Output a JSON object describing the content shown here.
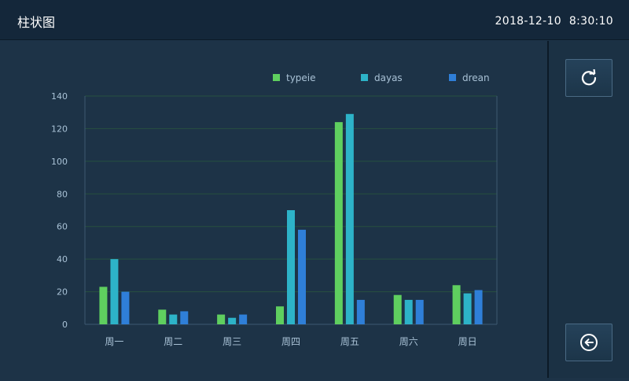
{
  "header": {
    "title": "柱状图",
    "date": "2018-12-10",
    "time": "8:30:10"
  },
  "buttons": {
    "refresh_icon": "refresh-icon",
    "back_icon": "back-arrow-icon"
  },
  "chart_data": {
    "type": "bar",
    "title": "",
    "xlabel": "",
    "ylabel": "",
    "ylim": [
      0,
      140
    ],
    "yticks": [
      0,
      20,
      40,
      60,
      80,
      100,
      120,
      140
    ],
    "grid": true,
    "legend_position": "top-right",
    "categories": [
      "周一",
      "周二",
      "周三",
      "周四",
      "周五",
      "周六",
      "周日"
    ],
    "series": [
      {
        "name": "typeie",
        "color": "#5fcf5f",
        "values": [
          23,
          9,
          6,
          11,
          124,
          18,
          24
        ]
      },
      {
        "name": "dayas",
        "color": "#2db3c8",
        "values": [
          40,
          6,
          4,
          70,
          129,
          15,
          19
        ]
      },
      {
        "name": "drean",
        "color": "#2f7fd8",
        "values": [
          20,
          8,
          6,
          58,
          15,
          15,
          21
        ]
      }
    ]
  }
}
